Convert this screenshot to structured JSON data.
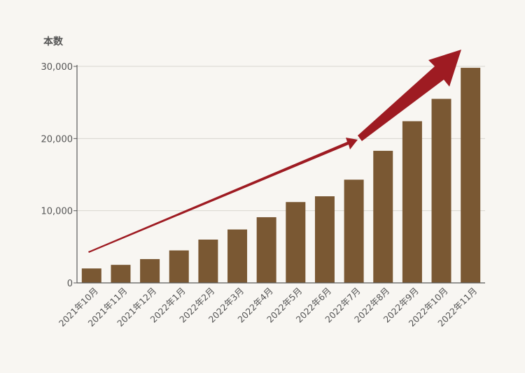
{
  "chart_data": {
    "type": "bar",
    "ylabel": "本数",
    "categories": [
      "2021年10月",
      "2021年11月",
      "2021年12月",
      "2022年1月",
      "2022年2月",
      "2022年3月",
      "2022年4月",
      "2022年5月",
      "2022年6月",
      "2022年7月",
      "2022年8月",
      "2022年9月",
      "2022年10月",
      "2022年11月"
    ],
    "values": [
      2000,
      2500,
      3300,
      4500,
      6000,
      7400,
      9100,
      11200,
      12000,
      14300,
      18300,
      22400,
      25500,
      29800
    ],
    "ylim": [
      0,
      30000
    ],
    "yticks": [
      0,
      10000,
      20000,
      30000
    ],
    "ytick_labels": [
      "0",
      "10,000",
      "20,000",
      "30,000"
    ],
    "grid": true,
    "annotation": "upward trend arrow",
    "colors": {
      "bar": "#7a5833",
      "arrow": "#9e1b22",
      "grid": "#d9d6d0",
      "axis": "#5a5a5a",
      "text": "#555555",
      "background": "#f8f6f2"
    }
  }
}
